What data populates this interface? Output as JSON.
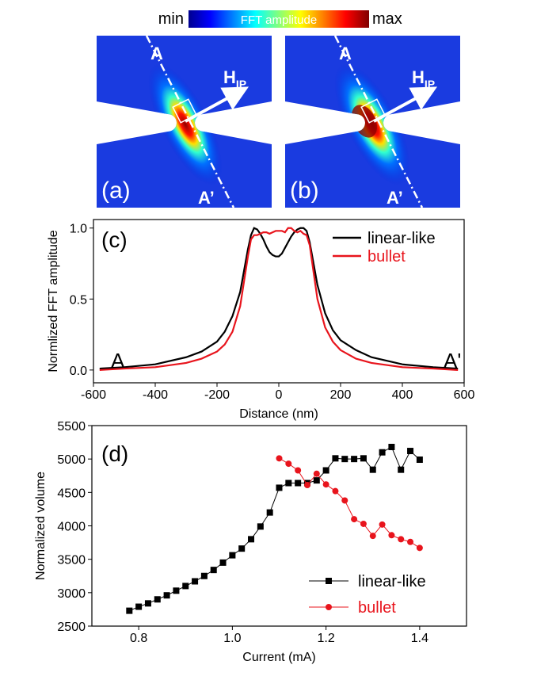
{
  "colorbar": {
    "min": "min",
    "label": "FFT amplitude",
    "max": "max"
  },
  "panels": [
    {
      "label": "(a)",
      "point_a": "A",
      "point_a_prime": "A’",
      "field": "H",
      "field_sub": "IP"
    },
    {
      "label": "(b)",
      "point_a": "A",
      "point_a_prime": "A’",
      "field": "H",
      "field_sub": "IP"
    }
  ],
  "chart_data": [
    {
      "type": "line",
      "panel_label": "(c)",
      "xlabel": "Distance (nm)",
      "ylabel": "Normlized FFT amplitude",
      "annotations": [
        "A",
        "A'"
      ],
      "x": [
        -580,
        -500,
        -400,
        -300,
        -250,
        -200,
        -175,
        -150,
        -125,
        -100,
        -90,
        -80,
        -70,
        -60,
        -50,
        -40,
        -30,
        -20,
        -10,
        0,
        10,
        20,
        30,
        40,
        50,
        60,
        70,
        80,
        90,
        100,
        125,
        150,
        175,
        200,
        250,
        300,
        400,
        500,
        580
      ],
      "series": [
        {
          "name": "linear-like",
          "color": "#000000",
          "values": [
            0.01,
            0.02,
            0.04,
            0.09,
            0.13,
            0.2,
            0.27,
            0.38,
            0.55,
            0.85,
            0.95,
            1.0,
            0.99,
            0.96,
            0.92,
            0.87,
            0.83,
            0.81,
            0.8,
            0.8,
            0.82,
            0.86,
            0.9,
            0.94,
            0.97,
            0.99,
            1.0,
            1.0,
            0.98,
            0.9,
            0.6,
            0.4,
            0.28,
            0.21,
            0.14,
            0.09,
            0.04,
            0.02,
            0.01
          ]
        },
        {
          "name": "bullet",
          "color": "#e8141c",
          "values": [
            0.0,
            0.01,
            0.02,
            0.05,
            0.08,
            0.13,
            0.18,
            0.27,
            0.45,
            0.8,
            0.92,
            0.95,
            0.95,
            0.96,
            0.97,
            0.97,
            0.96,
            0.97,
            0.98,
            0.98,
            0.98,
            0.97,
            1.0,
            1.0,
            0.98,
            0.97,
            0.98,
            0.96,
            0.95,
            0.88,
            0.5,
            0.3,
            0.2,
            0.14,
            0.08,
            0.05,
            0.02,
            0.01,
            0.0
          ]
        }
      ],
      "xlim": [
        -600,
        600
      ],
      "xticks": [
        -600,
        -400,
        -200,
        0,
        200,
        400,
        600
      ],
      "ylim": [
        -0.09,
        1.06
      ],
      "yticks": [
        {
          "value": 0,
          "label": "0.0"
        },
        0.5,
        {
          "value": 1,
          "label": "1.0"
        }
      ]
    },
    {
      "type": "line",
      "panel_label": "(d)",
      "xlabel": "Current (mA)",
      "ylabel": "Normalized volume",
      "series": [
        {
          "name": "linear-like",
          "color": "#000000",
          "marker": "square",
          "x": [
            0.78,
            0.8,
            0.82,
            0.84,
            0.86,
            0.88,
            0.9,
            0.92,
            0.94,
            0.96,
            0.98,
            1.0,
            1.02,
            1.04,
            1.06,
            1.08,
            1.1,
            1.12,
            1.14,
            1.16,
            1.18,
            1.2,
            1.22,
            1.24,
            1.26,
            1.28,
            1.3,
            1.32,
            1.34,
            1.36,
            1.38,
            1.4
          ],
          "values": [
            2730,
            2790,
            2840,
            2900,
            2960,
            3030,
            3100,
            3170,
            3250,
            3340,
            3450,
            3560,
            3660,
            3800,
            3990,
            4200,
            4570,
            4640,
            4640,
            4640,
            4680,
            4830,
            5010,
            5000,
            5000,
            5010,
            4840,
            5100,
            5180,
            4840,
            5120,
            4990
          ]
        },
        {
          "name": "bullet",
          "color": "#e8141c",
          "marker": "circle",
          "x": [
            1.1,
            1.12,
            1.14,
            1.16,
            1.18,
            1.2,
            1.22,
            1.24,
            1.26,
            1.28,
            1.3,
            1.32,
            1.34,
            1.36,
            1.38,
            1.4
          ],
          "values": [
            5010,
            4930,
            4830,
            4610,
            4780,
            4620,
            4520,
            4380,
            4100,
            4030,
            3850,
            4020,
            3860,
            3800,
            3760,
            3670
          ]
        }
      ],
      "xlim": [
        0.7,
        1.5
      ],
      "xticks": [
        0.8,
        {
          "value": 1,
          "label": "1.0"
        },
        1.2,
        1.4
      ],
      "ylim": [
        2500,
        5500
      ],
      "yticks": [
        2500,
        3000,
        3500,
        4000,
        4500,
        5000,
        5500
      ]
    }
  ]
}
